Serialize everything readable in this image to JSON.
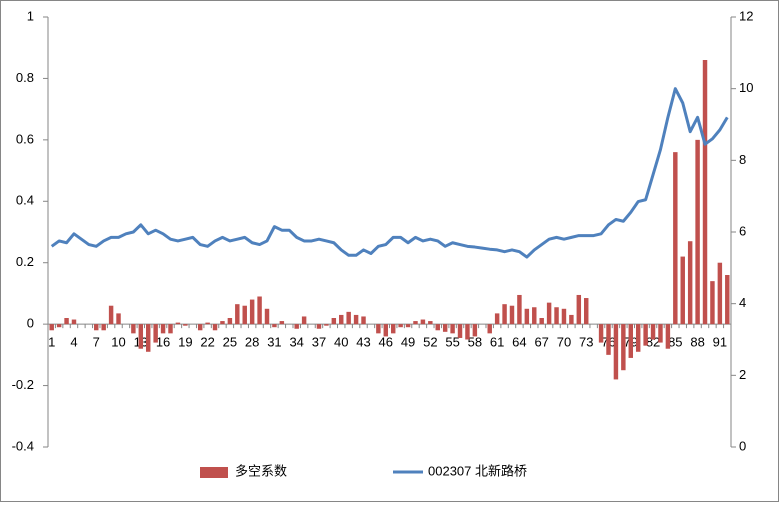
{
  "chart_data": {
    "type": "bar-line",
    "categories": [
      "1",
      null,
      null,
      "4",
      null,
      null,
      "7",
      null,
      null,
      "10",
      null,
      null,
      "13",
      null,
      null,
      "16",
      null,
      null,
      "19",
      null,
      null,
      "22",
      null,
      null,
      "25",
      null,
      null,
      "28",
      null,
      null,
      "31",
      null,
      null,
      "34",
      null,
      null,
      "37",
      null,
      null,
      "40",
      null,
      null,
      "43",
      null,
      null,
      "46",
      null,
      null,
      "49",
      null,
      null,
      "52",
      null,
      null,
      "55",
      null,
      null,
      "58",
      null,
      null,
      "61",
      null,
      null,
      "64",
      null,
      null,
      "67",
      null,
      null,
      "70",
      null,
      null,
      "73",
      null,
      null,
      "76",
      null,
      null,
      "79",
      null,
      null,
      "82",
      null,
      null,
      "85",
      null,
      null,
      "88",
      null,
      null,
      "91",
      null
    ],
    "series": [
      {
        "name": "多空系数",
        "color": "#c0504d",
        "kind": "bar",
        "values": [
          -0.02,
          -0.01,
          0.02,
          0.015,
          0,
          0,
          -0.02,
          -0.02,
          0.06,
          0.035,
          0,
          -0.03,
          -0.08,
          -0.09,
          -0.06,
          -0.03,
          -0.03,
          0.005,
          -0.005,
          0,
          -0.02,
          0.005,
          -0.02,
          0.01,
          0.02,
          0.065,
          0.06,
          0.08,
          0.09,
          0.05,
          -0.01,
          0.01,
          0,
          -0.015,
          0.025,
          0,
          -0.015,
          -0.005,
          0.02,
          0.03,
          0.04,
          0.03,
          0.025,
          0,
          -0.03,
          -0.04,
          -0.03,
          -0.01,
          -0.01,
          0.01,
          0.015,
          0.01,
          -0.02,
          -0.025,
          -0.03,
          -0.045,
          -0.05,
          -0.04,
          0,
          -0.03,
          0.035,
          0.065,
          0.06,
          0.095,
          0.05,
          0.055,
          0.02,
          0.07,
          0.055,
          0.05,
          0.03,
          0.095,
          0.085,
          0,
          -0.06,
          -0.1,
          -0.18,
          -0.15,
          -0.11,
          -0.09,
          -0.07,
          -0.05,
          -0.06,
          -0.08,
          0.56,
          0.22,
          0.27,
          0.6,
          0.86,
          0.14,
          0.2,
          0.16
        ]
      },
      {
        "name": "002307 北新路桥",
        "color": "#4f81bd",
        "kind": "line",
        "axis": "y2",
        "values": [
          5.6,
          5.75,
          5.7,
          5.95,
          5.8,
          5.65,
          5.6,
          5.75,
          5.85,
          5.85,
          5.95,
          6.0,
          6.2,
          5.95,
          6.05,
          5.95,
          5.8,
          5.75,
          5.8,
          5.85,
          5.65,
          5.6,
          5.75,
          5.85,
          5.75,
          5.8,
          5.85,
          5.7,
          5.65,
          5.75,
          6.15,
          6.05,
          6.05,
          5.85,
          5.75,
          5.75,
          5.8,
          5.75,
          5.7,
          5.5,
          5.35,
          5.35,
          5.5,
          5.4,
          5.6,
          5.65,
          5.85,
          5.85,
          5.7,
          5.85,
          5.75,
          5.8,
          5.75,
          5.6,
          5.7,
          5.65,
          5.6,
          5.58,
          5.55,
          5.52,
          5.5,
          5.45,
          5.5,
          5.45,
          5.3,
          5.5,
          5.65,
          5.8,
          5.85,
          5.8,
          5.85,
          5.9,
          5.9,
          5.9,
          5.95,
          6.2,
          6.35,
          6.3,
          6.55,
          6.85,
          6.9,
          7.6,
          8.3,
          9.2,
          10.0,
          9.6,
          8.8,
          9.2,
          8.45,
          8.6,
          8.85,
          9.2
        ]
      }
    ],
    "ylim": [
      -0.4,
      1
    ],
    "yticks": [
      -0.4,
      -0.2,
      0,
      0.2,
      0.4,
      0.6,
      0.8,
      1
    ],
    "y2lim": [
      0,
      12
    ],
    "y2ticks": [
      0,
      2,
      4,
      6,
      8,
      10,
      12
    ],
    "legend": "bottom"
  }
}
